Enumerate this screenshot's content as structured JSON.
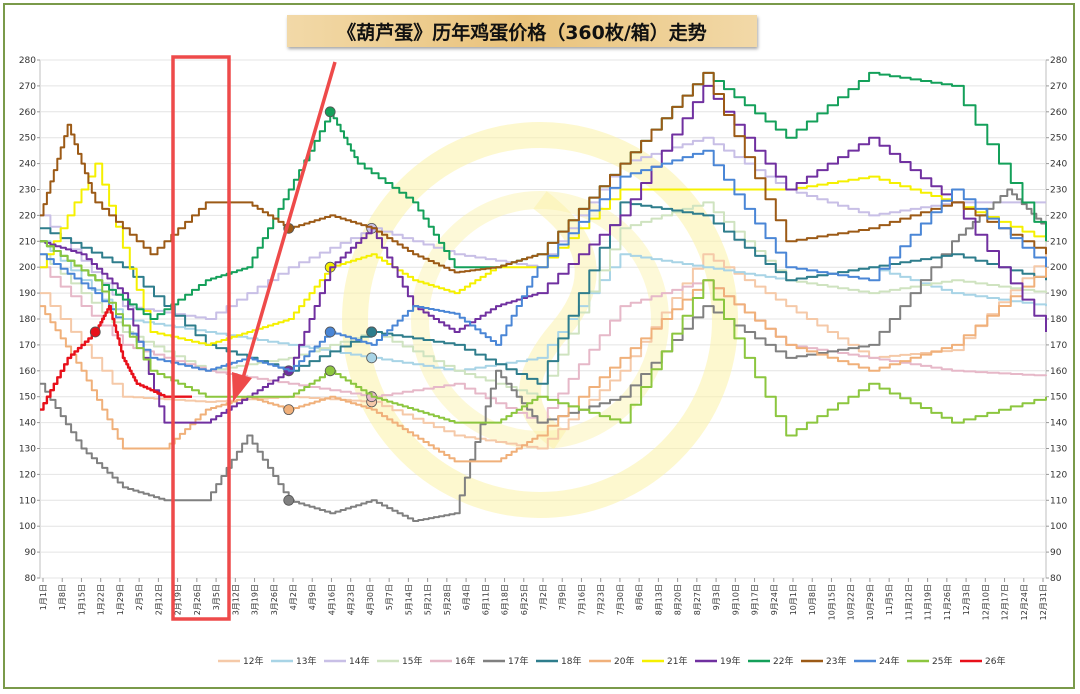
{
  "title": "《葫芦蛋》历年鸡蛋价格（360枚/箱）走势",
  "chart_data": {
    "type": "line",
    "title": "《葫芦蛋》历年鸡蛋价格（360枚/箱）走势",
    "ylim": [
      80,
      280
    ],
    "y_ticks": [
      80,
      90,
      100,
      110,
      120,
      130,
      140,
      150,
      160,
      170,
      180,
      190,
      200,
      210,
      220,
      230,
      240,
      250,
      260,
      270,
      280
    ],
    "x_ticks": [
      "1月1日",
      "1月8日",
      "1月15日",
      "1月22日",
      "1月29日",
      "2月5日",
      "2月12日",
      "2月19日",
      "2月26日",
      "3月5日",
      "3月12日",
      "3月19日",
      "3月26日",
      "4月2日",
      "4月9日",
      "4月16日",
      "4月23日",
      "4月30日",
      "5月7日",
      "5月14日",
      "5月21日",
      "5月28日",
      "6月4日",
      "6月11日",
      "6月18日",
      "6月25日",
      "7月2日",
      "7月9日",
      "7月16日",
      "7月23日",
      "7月30日",
      "8月6日",
      "8月13日",
      "8月20日",
      "8月27日",
      "9月3日",
      "9月10日",
      "9月17日",
      "9月24日",
      "10月1日",
      "10月8日",
      "10月15日",
      "10月22日",
      "10月29日",
      "11月5日",
      "11月12日",
      "11月19日",
      "11月26日",
      "12月3日",
      "12月10日",
      "12月17日",
      "12月24日",
      "12月31日"
    ],
    "grid": true,
    "legend_position": "bottom",
    "series": [
      {
        "name": "12年",
        "color": "#f5c9a8",
        "x": [
          0,
          30,
          60,
          90,
          120,
          150,
          180,
          210,
          240,
          270,
          300,
          330,
          364
        ],
        "values": [
          190,
          150,
          148,
          150,
          148,
          135,
          130,
          160,
          205,
          185,
          165,
          168,
          205
        ]
      },
      {
        "name": "13年",
        "color": "#a8d4e6",
        "x": [
          0,
          30,
          60,
          90,
          120,
          150,
          180,
          210,
          240,
          270,
          300,
          330,
          364
        ],
        "values": [
          210,
          180,
          175,
          170,
          165,
          160,
          165,
          205,
          200,
          195,
          200,
          190,
          185
        ]
      },
      {
        "name": "14年",
        "color": "#c8bfe6",
        "x": [
          0,
          30,
          60,
          90,
          120,
          150,
          180,
          210,
          240,
          270,
          300,
          330,
          364
        ],
        "values": [
          220,
          185,
          180,
          200,
          215,
          205,
          200,
          240,
          250,
          230,
          220,
          225,
          225
        ]
      },
      {
        "name": "15年",
        "color": "#cfe3c0",
        "x": [
          0,
          30,
          60,
          90,
          120,
          150,
          180,
          210,
          240,
          270,
          300,
          330,
          364
        ],
        "values": [
          205,
          175,
          160,
          165,
          175,
          160,
          150,
          215,
          225,
          195,
          190,
          195,
          190
        ]
      },
      {
        "name": "16年",
        "color": "#e6b8c8",
        "x": [
          0,
          30,
          60,
          90,
          120,
          150,
          180,
          210,
          240,
          270,
          300,
          330,
          364
        ],
        "values": [
          200,
          170,
          160,
          155,
          150,
          155,
          140,
          185,
          195,
          170,
          165,
          160,
          158
        ]
      },
      {
        "name": "17年",
        "color": "#808080",
        "x": [
          0,
          15,
          30,
          45,
          60,
          75,
          90,
          105,
          120,
          135,
          150,
          165,
          180,
          210,
          240,
          270,
          300,
          330,
          350,
          364
        ],
        "values": [
          155,
          130,
          115,
          110,
          110,
          135,
          110,
          105,
          110,
          102,
          105,
          160,
          140,
          150,
          185,
          165,
          170,
          210,
          230,
          215
        ]
      },
      {
        "name": "18年",
        "color": "#2e7d8c",
        "x": [
          0,
          30,
          60,
          90,
          120,
          150,
          180,
          210,
          240,
          270,
          300,
          330,
          364
        ],
        "values": [
          215,
          200,
          170,
          160,
          175,
          170,
          155,
          225,
          220,
          195,
          200,
          205,
          195
        ]
      },
      {
        "name": "20年",
        "color": "#f0b07a",
        "x": [
          0,
          15,
          30,
          45,
          60,
          75,
          90,
          105,
          120,
          135,
          150,
          165,
          180,
          210,
          240,
          270,
          300,
          330,
          364
        ],
        "values": [
          185,
          160,
          130,
          130,
          145,
          150,
          145,
          150,
          145,
          135,
          125,
          125,
          135,
          165,
          195,
          170,
          160,
          170,
          200
        ]
      },
      {
        "name": "21年",
        "color": "#f5f000",
        "x": [
          0,
          20,
          40,
          60,
          75,
          90,
          105,
          120,
          135,
          150,
          165,
          180,
          210,
          240,
          270,
          300,
          330,
          364
        ],
        "values": [
          200,
          240,
          175,
          170,
          175,
          180,
          200,
          205,
          195,
          190,
          200,
          200,
          230,
          230,
          230,
          235,
          225,
          210
        ]
      },
      {
        "name": "19年",
        "color": "#7030a0",
        "x": [
          0,
          15,
          30,
          45,
          60,
          75,
          90,
          105,
          120,
          135,
          150,
          165,
          180,
          210,
          240,
          270,
          300,
          330,
          364
        ],
        "values": [
          210,
          205,
          190,
          140,
          140,
          150,
          160,
          200,
          215,
          185,
          175,
          185,
          190,
          220,
          270,
          230,
          250,
          225,
          175
        ]
      },
      {
        "name": "22年",
        "color": "#14a05a",
        "x": [
          0,
          20,
          40,
          60,
          75,
          90,
          105,
          115,
          135,
          150,
          165,
          180,
          210,
          240,
          270,
          300,
          330,
          364
        ],
        "values": [
          210,
          195,
          180,
          195,
          200,
          230,
          260,
          240,
          225,
          200,
          200,
          205,
          240,
          275,
          250,
          275,
          270,
          210
        ]
      },
      {
        "name": "23年",
        "color": "#9c5a16",
        "x": [
          0,
          10,
          20,
          40,
          60,
          75,
          90,
          105,
          120,
          135,
          150,
          165,
          180,
          210,
          240,
          270,
          300,
          330,
          364
        ],
        "values": [
          220,
          255,
          225,
          205,
          225,
          225,
          215,
          220,
          215,
          205,
          198,
          200,
          205,
          240,
          275,
          210,
          215,
          225,
          205
        ]
      },
      {
        "name": "24年",
        "color": "#4a86d6",
        "x": [
          0,
          20,
          40,
          60,
          75,
          90,
          105,
          120,
          135,
          150,
          165,
          180,
          210,
          240,
          270,
          300,
          330,
          364
        ],
        "values": [
          205,
          190,
          165,
          160,
          165,
          160,
          175,
          170,
          185,
          182,
          170,
          200,
          235,
          245,
          200,
          195,
          230,
          200
        ]
      },
      {
        "name": "25年",
        "color": "#8cc63f",
        "x": [
          0,
          20,
          40,
          60,
          75,
          90,
          105,
          120,
          135,
          150,
          165,
          180,
          210,
          240,
          270,
          300,
          330,
          364
        ],
        "values": [
          210,
          195,
          160,
          150,
          150,
          150,
          160,
          150,
          145,
          140,
          140,
          150,
          140,
          195,
          135,
          155,
          140,
          150
        ]
      },
      {
        "name": "26年",
        "color": "#e8101a",
        "x": [
          0,
          10,
          20,
          25,
          30,
          35,
          45,
          55
        ],
        "values": [
          145,
          165,
          175,
          185,
          165,
          155,
          150,
          150
        ]
      }
    ]
  },
  "legend_order": [
    "12年",
    "13年",
    "14年",
    "15年",
    "16年",
    "17年",
    "18年",
    "20年",
    "21年",
    "19年",
    "22年",
    "23年",
    "24年",
    "25年",
    "26年"
  ]
}
